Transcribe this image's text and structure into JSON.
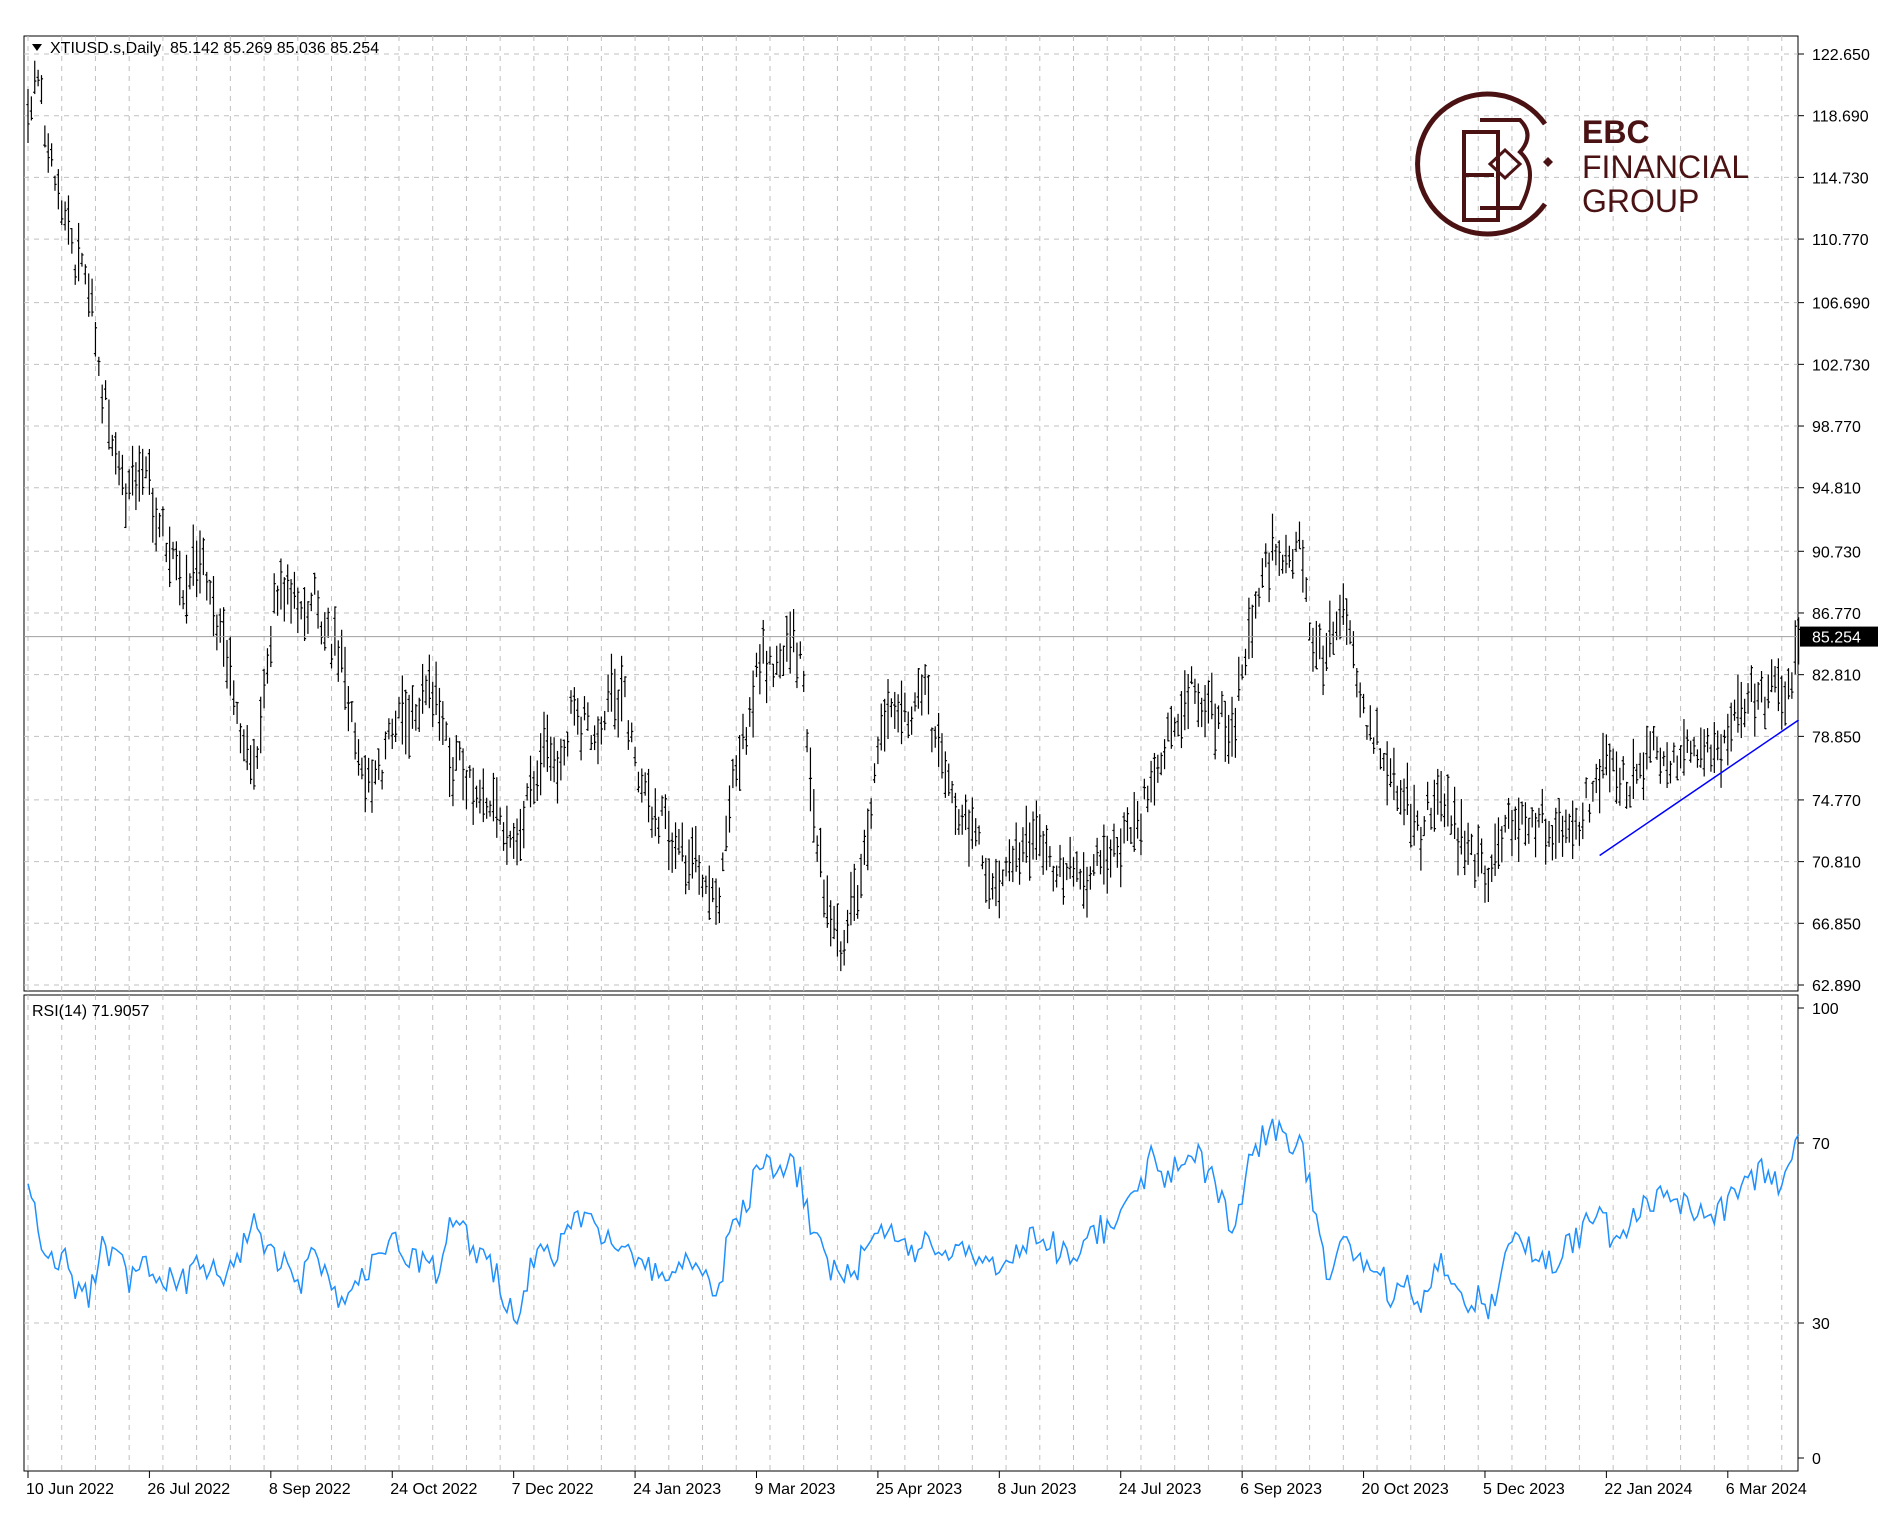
{
  "header": {
    "symbol_line": "XTIUSD.s,Daily  85.142 85.269 85.036 85.254",
    "rsi_label": "RSI(14) 71.9057"
  },
  "logo": {
    "line1": "EBC",
    "line2": "FINANCIAL",
    "line3": "GROUP",
    "color": "#4a1212"
  },
  "colors": {
    "bars": "#000000",
    "rsi_line": "#1e90ff",
    "trendline": "#0000ff",
    "grid": "#c0c0c0",
    "price_marker_bg": "#000000",
    "price_marker_text": "#ffffff"
  },
  "chart_data": [
    {
      "type": "ohlc",
      "name": "XTIUSD.s Daily",
      "current_price": "85.254",
      "ylim": [
        62.89,
        122.65
      ],
      "y_ticks": [
        "122.650",
        "118.690",
        "114.730",
        "110.770",
        "106.690",
        "102.730",
        "98.770",
        "94.810",
        "90.730",
        "86.770",
        "82.810",
        "78.850",
        "74.770",
        "70.810",
        "66.850",
        "62.890"
      ],
      "x_ticks": [
        "10 Jun 2022",
        "26 Jul 2022",
        "8 Sep 2022",
        "24 Oct 2022",
        "7 Dec 2022",
        "24 Jan 2023",
        "9 Mar 2023",
        "25 Apr 2023",
        "8 Jun 2023",
        "24 Jul 2023",
        "6 Sep 2023",
        "20 Oct 2023",
        "5 Dec 2023",
        "22 Jan 2024",
        "6 Mar 2024"
      ],
      "path_points": [
        [
          0,
          119
        ],
        [
          3,
          121
        ],
        [
          6,
          117
        ],
        [
          10,
          113
        ],
        [
          14,
          109
        ],
        [
          18,
          108
        ],
        [
          22,
          101
        ],
        [
          26,
          97
        ],
        [
          30,
          94
        ],
        [
          34,
          97
        ],
        [
          38,
          93
        ],
        [
          43,
          90
        ],
        [
          47,
          88
        ],
        [
          51,
          91
        ],
        [
          55,
          87
        ],
        [
          59,
          84
        ],
        [
          63,
          79
        ],
        [
          67,
          77
        ],
        [
          69,
          80
        ],
        [
          73,
          87
        ],
        [
          77,
          89
        ],
        [
          81,
          86
        ],
        [
          85,
          88
        ],
        [
          89,
          85
        ],
        [
          93,
          84
        ],
        [
          97,
          79
        ],
        [
          101,
          76
        ],
        [
          105,
          77
        ],
        [
          109,
          80
        ],
        [
          113,
          80
        ],
        [
          117,
          81
        ],
        [
          121,
          82
        ],
        [
          125,
          77
        ],
        [
          129,
          77
        ],
        [
          133,
          75
        ],
        [
          137,
          75
        ],
        [
          141,
          73
        ],
        [
          145,
          72
        ],
        [
          149,
          75
        ],
        [
          153,
          78
        ],
        [
          157,
          76
        ],
        [
          161,
          80
        ],
        [
          165,
          80
        ],
        [
          169,
          79
        ],
        [
          173,
          82
        ],
        [
          177,
          81
        ],
        [
          181,
          76
        ],
        [
          185,
          74
        ],
        [
          189,
          73
        ],
        [
          193,
          71
        ],
        [
          197,
          71
        ],
        [
          201,
          69
        ],
        [
          205,
          69
        ],
        [
          209,
          76
        ],
        [
          213,
          79
        ],
        [
          217,
          84
        ],
        [
          221,
          83
        ],
        [
          225,
          85
        ],
        [
          229,
          84
        ],
        [
          233,
          73
        ],
        [
          237,
          68
        ],
        [
          241,
          65
        ],
        [
          245,
          68
        ],
        [
          249,
          73
        ],
        [
          253,
          80
        ],
        [
          257,
          81
        ],
        [
          261,
          80
        ],
        [
          265,
          82
        ],
        [
          269,
          79
        ],
        [
          273,
          76
        ],
        [
          277,
          73
        ],
        [
          281,
          72
        ],
        [
          285,
          70
        ],
        [
          289,
          70
        ],
        [
          293,
          71
        ],
        [
          297,
          72
        ],
        [
          301,
          72
        ],
        [
          305,
          70
        ],
        [
          309,
          70
        ],
        [
          313,
          69
        ],
        [
          317,
          71
        ],
        [
          321,
          71
        ],
        [
          325,
          72
        ],
        [
          329,
          73
        ],
        [
          333,
          76
        ],
        [
          337,
          78
        ],
        [
          341,
          80
        ],
        [
          345,
          82
        ],
        [
          349,
          81
        ],
        [
          353,
          80
        ],
        [
          357,
          79
        ],
        [
          361,
          84
        ],
        [
          365,
          88
        ],
        [
          369,
          91
        ],
        [
          373,
          90
        ],
        [
          377,
          91
        ],
        [
          381,
          84
        ],
        [
          385,
          84
        ],
        [
          389,
          87
        ],
        [
          393,
          84
        ],
        [
          397,
          80
        ],
        [
          401,
          78
        ],
        [
          405,
          76
        ],
        [
          409,
          75
        ],
        [
          413,
          73
        ],
        [
          417,
          75
        ],
        [
          421,
          74
        ],
        [
          425,
          72
        ],
        [
          429,
          71
        ],
        [
          433,
          70
        ],
        [
          437,
          72
        ],
        [
          441,
          74
        ],
        [
          445,
          73
        ],
        [
          449,
          73
        ],
        [
          453,
          73
        ],
        [
          457,
          72
        ],
        [
          461,
          74
        ],
        [
          465,
          76
        ],
        [
          469,
          78
        ],
        [
          473,
          76
        ],
        [
          477,
          76
        ],
        [
          481,
          78
        ],
        [
          485,
          77
        ],
        [
          489,
          77
        ],
        [
          493,
          78
        ],
        [
          497,
          79
        ],
        [
          501,
          78
        ],
        [
          505,
          80
        ],
        [
          509,
          81
        ],
        [
          513,
          81
        ],
        [
          517,
          82
        ],
        [
          521,
          82
        ],
        [
          525,
          84
        ]
      ],
      "trendline": {
        "from": [
          466,
          71.2
        ],
        "to": [
          525,
          79.9
        ]
      }
    },
    {
      "type": "line",
      "name": "RSI(14)",
      "last_value": "71.9057",
      "ylim": [
        0,
        100
      ],
      "y_ticks": [
        "100",
        "70",
        "30",
        "0"
      ],
      "path_points": [
        [
          0,
          60
        ],
        [
          3,
          52
        ],
        [
          6,
          42
        ],
        [
          10,
          46
        ],
        [
          14,
          38
        ],
        [
          18,
          35
        ],
        [
          22,
          47
        ],
        [
          26,
          44
        ],
        [
          30,
          40
        ],
        [
          34,
          44
        ],
        [
          38,
          37
        ],
        [
          43,
          41
        ],
        [
          47,
          38
        ],
        [
          51,
          44
        ],
        [
          55,
          41
        ],
        [
          59,
          40
        ],
        [
          63,
          45
        ],
        [
          67,
          52
        ],
        [
          69,
          50
        ],
        [
          73,
          44
        ],
        [
          77,
          45
        ],
        [
          81,
          40
        ],
        [
          85,
          46
        ],
        [
          89,
          42
        ],
        [
          93,
          35
        ],
        [
          97,
          40
        ],
        [
          101,
          42
        ],
        [
          105,
          43
        ],
        [
          109,
          48
        ],
        [
          113,
          44
        ],
        [
          117,
          44
        ],
        [
          121,
          42
        ],
        [
          125,
          52
        ],
        [
          129,
          50
        ],
        [
          133,
          46
        ],
        [
          137,
          44
        ],
        [
          141,
          36
        ],
        [
          145,
          32
        ],
        [
          149,
          42
        ],
        [
          153,
          47
        ],
        [
          157,
          45
        ],
        [
          161,
          52
        ],
        [
          165,
          54
        ],
        [
          169,
          50
        ],
        [
          173,
          49
        ],
        [
          177,
          47
        ],
        [
          181,
          43
        ],
        [
          185,
          41
        ],
        [
          189,
          40
        ],
        [
          193,
          42
        ],
        [
          197,
          44
        ],
        [
          201,
          40
        ],
        [
          205,
          38
        ],
        [
          209,
          53
        ],
        [
          213,
          56
        ],
        [
          217,
          66
        ],
        [
          221,
          64
        ],
        [
          225,
          66
        ],
        [
          229,
          62
        ],
        [
          233,
          48
        ],
        [
          237,
          44
        ],
        [
          241,
          38
        ],
        [
          245,
          42
        ],
        [
          249,
          46
        ],
        [
          253,
          52
        ],
        [
          257,
          50
        ],
        [
          261,
          46
        ],
        [
          265,
          48
        ],
        [
          269,
          46
        ],
        [
          273,
          44
        ],
        [
          277,
          46
        ],
        [
          281,
          44
        ],
        [
          285,
          44
        ],
        [
          289,
          44
        ],
        [
          293,
          46
        ],
        [
          297,
          48
        ],
        [
          301,
          50
        ],
        [
          305,
          46
        ],
        [
          309,
          44
        ],
        [
          313,
          48
        ],
        [
          317,
          50
        ],
        [
          321,
          52
        ],
        [
          325,
          57
        ],
        [
          329,
          60
        ],
        [
          333,
          66
        ],
        [
          337,
          62
        ],
        [
          341,
          66
        ],
        [
          345,
          70
        ],
        [
          349,
          64
        ],
        [
          353,
          60
        ],
        [
          357,
          52
        ],
        [
          361,
          62
        ],
        [
          365,
          70
        ],
        [
          369,
          74
        ],
        [
          373,
          70
        ],
        [
          377,
          70
        ],
        [
          381,
          58
        ],
        [
          385,
          40
        ],
        [
          389,
          50
        ],
        [
          393,
          45
        ],
        [
          397,
          42
        ],
        [
          401,
          40
        ],
        [
          405,
          36
        ],
        [
          409,
          40
        ],
        [
          413,
          34
        ],
        [
          417,
          40
        ],
        [
          421,
          44
        ],
        [
          425,
          34
        ],
        [
          429,
          36
        ],
        [
          433,
          32
        ],
        [
          437,
          42
        ],
        [
          441,
          48
        ],
        [
          445,
          46
        ],
        [
          449,
          46
        ],
        [
          453,
          44
        ],
        [
          457,
          48
        ],
        [
          461,
          50
        ],
        [
          465,
          56
        ],
        [
          469,
          50
        ],
        [
          473,
          48
        ],
        [
          477,
          56
        ],
        [
          481,
          55
        ],
        [
          485,
          58
        ],
        [
          489,
          56
        ],
        [
          493,
          55
        ],
        [
          497,
          56
        ],
        [
          501,
          54
        ],
        [
          505,
          58
        ],
        [
          509,
          60
        ],
        [
          513,
          64
        ],
        [
          517,
          60
        ],
        [
          521,
          64
        ],
        [
          525,
          72
        ]
      ]
    }
  ]
}
